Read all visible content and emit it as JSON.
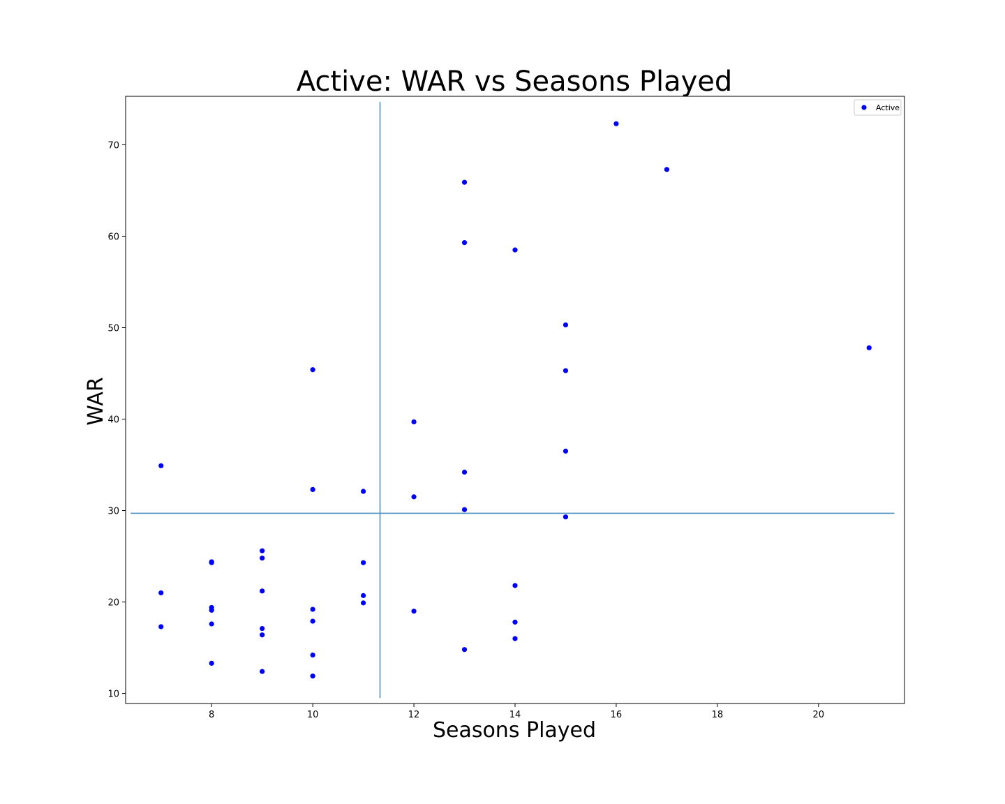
{
  "chart_data": {
    "type": "scatter",
    "title": "Active: WAR vs Seasons Played",
    "xlabel": "Seasons Played",
    "ylabel": "WAR",
    "xlim": [
      6.3,
      21.7
    ],
    "ylim": [
      8.9,
      75.3
    ],
    "xticks": [
      8,
      10,
      12,
      14,
      16,
      18,
      20
    ],
    "yticks": [
      10,
      20,
      30,
      40,
      50,
      60,
      70
    ],
    "grid": false,
    "legend_position": "top-right",
    "series": [
      {
        "name": "Active",
        "color": "#0000ff",
        "points": [
          [
            7,
            34.9
          ],
          [
            7,
            21.0
          ],
          [
            7,
            17.3
          ],
          [
            8,
            24.3
          ],
          [
            8,
            24.4
          ],
          [
            8,
            19.4
          ],
          [
            8,
            19.1
          ],
          [
            8,
            17.6
          ],
          [
            8,
            13.3
          ],
          [
            9,
            25.6
          ],
          [
            9,
            24.8
          ],
          [
            9,
            21.2
          ],
          [
            9,
            17.1
          ],
          [
            9,
            16.4
          ],
          [
            9,
            12.4
          ],
          [
            10,
            45.4
          ],
          [
            10,
            32.3
          ],
          [
            10,
            19.2
          ],
          [
            10,
            17.9
          ],
          [
            10,
            14.2
          ],
          [
            10,
            11.9
          ],
          [
            11,
            32.1
          ],
          [
            11,
            24.3
          ],
          [
            11,
            20.7
          ],
          [
            11,
            19.9
          ],
          [
            12,
            39.7
          ],
          [
            12,
            31.5
          ],
          [
            12,
            19.0
          ],
          [
            13,
            65.9
          ],
          [
            13,
            59.3
          ],
          [
            13,
            34.2
          ],
          [
            13,
            30.1
          ],
          [
            13,
            14.8
          ],
          [
            14,
            58.5
          ],
          [
            14,
            21.8
          ],
          [
            14,
            17.8
          ],
          [
            14,
            16.0
          ],
          [
            15,
            50.3
          ],
          [
            15,
            45.3
          ],
          [
            15,
            36.5
          ],
          [
            15,
            29.3
          ],
          [
            16,
            72.3
          ],
          [
            17,
            67.3
          ],
          [
            21,
            47.8
          ]
        ]
      }
    ],
    "reference_lines": {
      "color": "#4c8fbf",
      "vertical_x": 11.33,
      "vertical_y_range": [
        9.5,
        74.7
      ],
      "horizontal_y": 29.7,
      "horizontal_x_range": [
        6.4,
        21.5
      ]
    }
  }
}
